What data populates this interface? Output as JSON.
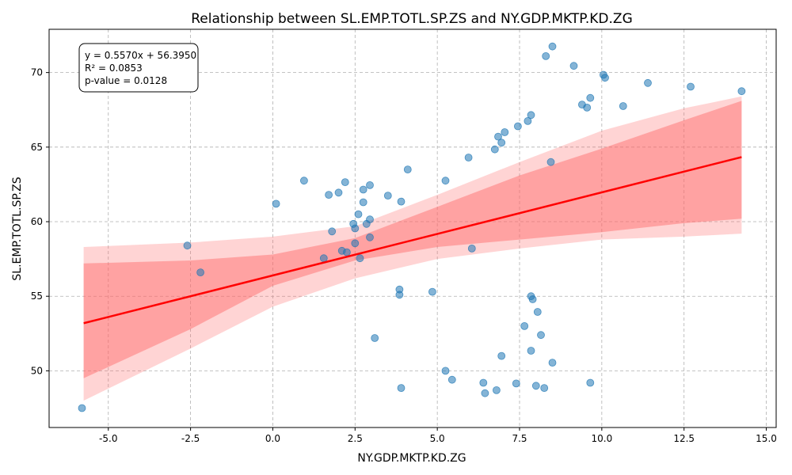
{
  "chart_data": {
    "type": "scatter",
    "title": "Relationship between SL.EMP.TOTL.SP.ZS and NY.GDP.MKTP.KD.ZG",
    "xlabel": "NY.GDP.MKTP.KD.ZG",
    "ylabel": "SL.EMP.TOTL.SP.ZS",
    "xlim": [
      -6.8,
      15.3
    ],
    "ylim": [
      46.2,
      72.9
    ],
    "xticks": [
      -5.0,
      -2.5,
      0.0,
      2.5,
      5.0,
      7.5,
      10.0,
      12.5,
      15.0
    ],
    "yticks": [
      50,
      55,
      60,
      65,
      70
    ],
    "grid": true,
    "stats_text": [
      "y = 0.5570x + 56.3950",
      "R² = 0.0853",
      "p-value = 0.0128"
    ],
    "stats_box_placement": "top-left",
    "regression": {
      "slope": 0.557,
      "intercept": 56.395,
      "x_range": [
        -5.75,
        14.25
      ]
    },
    "confidence_band_inner": {
      "x": [
        -5.75,
        -2.5,
        0,
        2.5,
        5,
        7.5,
        10,
        12.5,
        14.25
      ],
      "lower": [
        49.5,
        52.8,
        55.7,
        57.4,
        58.3,
        58.8,
        59.3,
        59.9,
        60.2
      ],
      "upper": [
        57.2,
        57.4,
        57.8,
        58.9,
        61.0,
        63.1,
        64.9,
        66.8,
        68.1
      ]
    },
    "confidence_band_outer": {
      "x": [
        -5.75,
        -2.5,
        0,
        2.5,
        5,
        7.5,
        10,
        12.5,
        14.25
      ],
      "lower": [
        48.0,
        51.5,
        54.3,
        56.2,
        57.5,
        58.2,
        58.8,
        59.0,
        59.2
      ],
      "upper": [
        58.3,
        58.6,
        59.0,
        59.7,
        61.8,
        64.0,
        66.1,
        67.6,
        68.4
      ]
    },
    "points": [
      [
        -5.8,
        47.5
      ],
      [
        -2.6,
        58.4
      ],
      [
        -2.2,
        56.6
      ],
      [
        0.1,
        61.2
      ],
      [
        0.95,
        62.75
      ],
      [
        1.55,
        57.55
      ],
      [
        1.7,
        61.8
      ],
      [
        1.8,
        59.35
      ],
      [
        2.0,
        61.95
      ],
      [
        2.1,
        58.05
      ],
      [
        2.2,
        62.65
      ],
      [
        2.25,
        57.95
      ],
      [
        2.45,
        59.85
      ],
      [
        2.5,
        58.55
      ],
      [
        2.5,
        59.55
      ],
      [
        2.6,
        60.5
      ],
      [
        2.65,
        57.55
      ],
      [
        2.75,
        61.3
      ],
      [
        2.75,
        62.15
      ],
      [
        2.85,
        59.85
      ],
      [
        2.95,
        58.95
      ],
      [
        2.95,
        60.15
      ],
      [
        2.95,
        62.45
      ],
      [
        3.1,
        52.2
      ],
      [
        3.5,
        61.75
      ],
      [
        3.85,
        55.1
      ],
      [
        3.85,
        55.45
      ],
      [
        3.9,
        48.85
      ],
      [
        3.9,
        61.35
      ],
      [
        4.1,
        63.5
      ],
      [
        4.85,
        55.3
      ],
      [
        5.25,
        50.0
      ],
      [
        5.25,
        62.75
      ],
      [
        5.45,
        49.4
      ],
      [
        5.95,
        64.3
      ],
      [
        6.05,
        58.2
      ],
      [
        6.4,
        49.2
      ],
      [
        6.45,
        48.5
      ],
      [
        6.75,
        64.85
      ],
      [
        6.8,
        48.7
      ],
      [
        6.85,
        65.7
      ],
      [
        6.95,
        65.3
      ],
      [
        6.95,
        51.0
      ],
      [
        7.05,
        66.0
      ],
      [
        7.4,
        49.15
      ],
      [
        7.45,
        66.4
      ],
      [
        7.65,
        53.0
      ],
      [
        7.75,
        66.75
      ],
      [
        7.85,
        55.0
      ],
      [
        7.85,
        67.15
      ],
      [
        7.85,
        51.35
      ],
      [
        7.9,
        54.8
      ],
      [
        8.0,
        49.0
      ],
      [
        8.05,
        53.95
      ],
      [
        8.15,
        52.4
      ],
      [
        8.25,
        48.85
      ],
      [
        8.3,
        71.1
      ],
      [
        8.45,
        64.0
      ],
      [
        8.5,
        71.75
      ],
      [
        8.5,
        50.55
      ],
      [
        9.15,
        70.45
      ],
      [
        9.4,
        67.85
      ],
      [
        9.55,
        67.65
      ],
      [
        9.65,
        49.2
      ],
      [
        9.65,
        68.3
      ],
      [
        10.05,
        69.85
      ],
      [
        10.1,
        69.65
      ],
      [
        10.65,
        67.75
      ],
      [
        11.4,
        69.3
      ],
      [
        12.7,
        69.05
      ],
      [
        14.25,
        68.75
      ]
    ],
    "colors": {
      "points": "#1f77b4",
      "line": "#ff0000",
      "band": "#ff6666"
    }
  }
}
